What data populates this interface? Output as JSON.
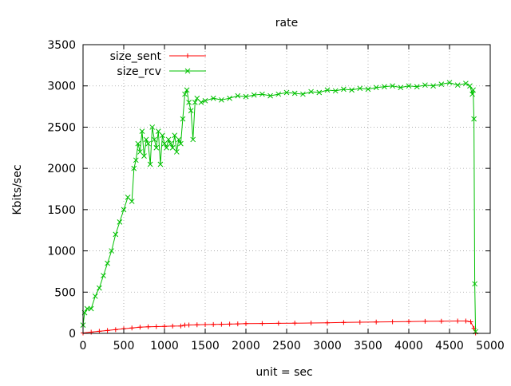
{
  "chart_data": {
    "type": "line",
    "title": "rate",
    "xlabel": "unit = sec",
    "ylabel": "Kbits/sec",
    "xlim": [
      0,
      5000
    ],
    "ylim": [
      0,
      3500
    ],
    "xticks": [
      0,
      500,
      1000,
      1500,
      2000,
      2500,
      3000,
      3500,
      4000,
      4500,
      5000
    ],
    "yticks": [
      0,
      500,
      1000,
      1500,
      2000,
      2500,
      3000,
      3500
    ],
    "grid": true,
    "legend_position": "top-left",
    "series": [
      {
        "name": "size_sent",
        "color": "#ff0000",
        "marker": "plus",
        "x": [
          0,
          100,
          200,
          300,
          400,
          500,
          600,
          700,
          800,
          900,
          1000,
          1100,
          1200,
          1250,
          1300,
          1400,
          1500,
          1600,
          1700,
          1800,
          1900,
          2000,
          2200,
          2400,
          2600,
          2800,
          3000,
          3200,
          3400,
          3600,
          3800,
          4000,
          4200,
          4400,
          4600,
          4700,
          4760,
          4800,
          4820
        ],
        "y": [
          5,
          15,
          25,
          35,
          45,
          55,
          65,
          75,
          80,
          82,
          85,
          88,
          90,
          100,
          102,
          104,
          106,
          108,
          110,
          112,
          115,
          118,
          120,
          122,
          124,
          126,
          128,
          132,
          135,
          138,
          140,
          143,
          146,
          148,
          150,
          150,
          140,
          60,
          5
        ]
      },
      {
        "name": "size_rcv",
        "color": "#00c000",
        "marker": "x",
        "x": [
          0,
          20,
          50,
          100,
          150,
          200,
          250,
          300,
          350,
          400,
          450,
          500,
          550,
          600,
          625,
          650,
          675,
          700,
          725,
          750,
          775,
          800,
          825,
          850,
          875,
          900,
          925,
          950,
          975,
          1000,
          1025,
          1050,
          1075,
          1100,
          1125,
          1150,
          1175,
          1200,
          1225,
          1250,
          1275,
          1300,
          1325,
          1350,
          1375,
          1400,
          1450,
          1500,
          1600,
          1700,
          1800,
          1900,
          2000,
          2100,
          2200,
          2300,
          2400,
          2500,
          2600,
          2700,
          2800,
          2900,
          3000,
          3100,
          3200,
          3300,
          3400,
          3500,
          3600,
          3700,
          3800,
          3900,
          4000,
          4100,
          4200,
          4300,
          4400,
          4500,
          4600,
          4700,
          4750,
          4780,
          4790,
          4800,
          4810,
          4820
        ],
        "y": [
          100,
          250,
          300,
          300,
          450,
          550,
          700,
          850,
          1000,
          1200,
          1350,
          1500,
          1650,
          1600,
          2000,
          2100,
          2300,
          2200,
          2450,
          2150,
          2350,
          2300,
          2050,
          2500,
          2350,
          2250,
          2450,
          2050,
          2400,
          2300,
          2250,
          2350,
          2300,
          2250,
          2400,
          2200,
          2350,
          2300,
          2600,
          2900,
          2950,
          2800,
          2700,
          2350,
          2800,
          2850,
          2800,
          2820,
          2850,
          2830,
          2850,
          2880,
          2870,
          2890,
          2900,
          2880,
          2900,
          2920,
          2910,
          2900,
          2930,
          2920,
          2950,
          2940,
          2960,
          2950,
          2970,
          2960,
          2980,
          2990,
          3000,
          2980,
          3000,
          2990,
          3010,
          3000,
          3020,
          3040,
          3010,
          3030,
          3000,
          2900,
          2950,
          2600,
          600,
          20
        ]
      }
    ]
  }
}
